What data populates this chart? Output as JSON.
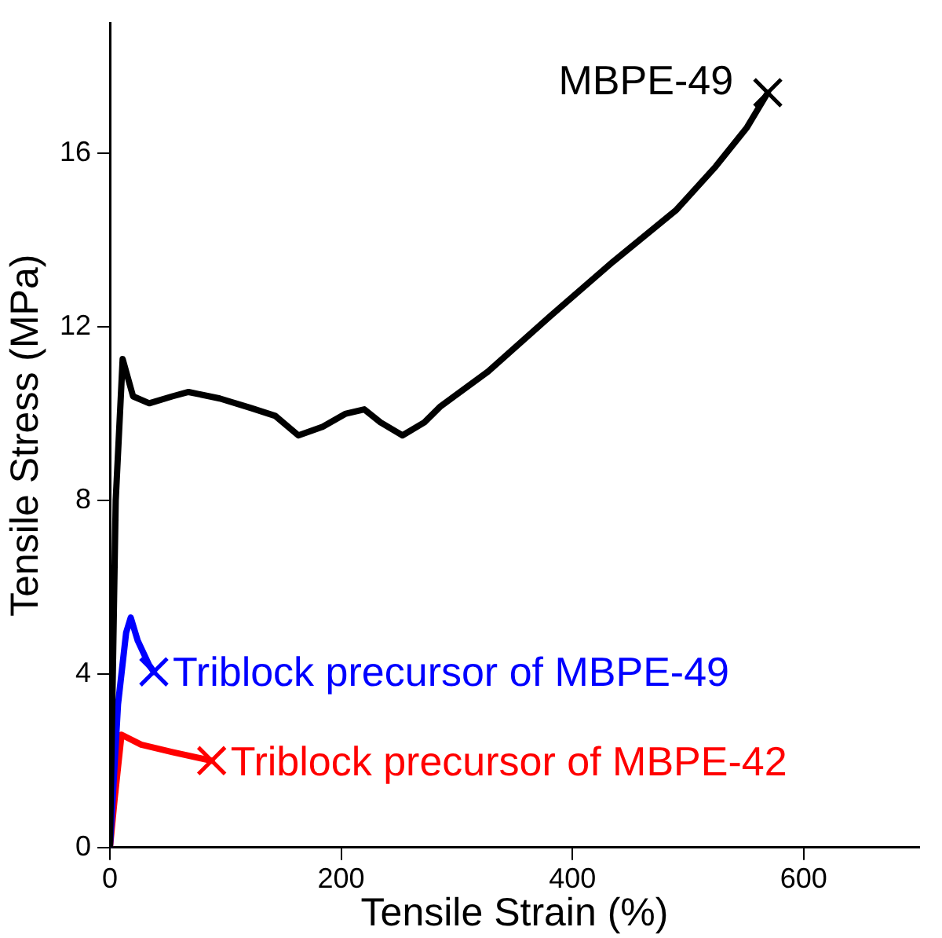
{
  "chart_data": {
    "type": "line",
    "xlabel": "Tensile Strain (%)",
    "ylabel": "Tensile Stress (MPa)",
    "xlim": [
      0,
      700
    ],
    "ylim": [
      0,
      19
    ],
    "xticks": [
      0,
      200,
      400,
      600
    ],
    "yticks": [
      0,
      4,
      8,
      12,
      16
    ],
    "grid": false,
    "legend": false,
    "marker": "none",
    "series": [
      {
        "name": "MBPE-49",
        "color": "#000000",
        "x": [
          0,
          5,
          11,
          20,
          34,
          54,
          68,
          95,
          122,
          143,
          163,
          184,
          204,
          220,
          234,
          253,
          272,
          286,
          327,
          381,
          435,
          490,
          524,
          551,
          569
        ],
        "values": [
          0,
          8,
          11.26,
          10.4,
          10.24,
          10.4,
          10.5,
          10.35,
          10.13,
          9.95,
          9.5,
          9.7,
          10.0,
          10.1,
          9.8,
          9.5,
          9.8,
          10.17,
          10.97,
          12.25,
          13.5,
          14.7,
          15.7,
          16.6,
          17.4
        ]
      },
      {
        "name": "Triblock precursor of MBPE-49",
        "color": "#0000ff",
        "x": [
          0,
          7,
          14,
          18,
          24,
          34,
          38
        ],
        "values": [
          0,
          3.3,
          4.95,
          5.3,
          4.77,
          4.2,
          4.05
        ]
      },
      {
        "name": "Triblock precursor of MBPE-42",
        "color": "#ff0000",
        "x": [
          0,
          4,
          10,
          27,
          54,
          88
        ],
        "values": [
          0,
          1.1,
          2.6,
          2.37,
          2.2,
          2.0
        ]
      }
    ]
  }
}
